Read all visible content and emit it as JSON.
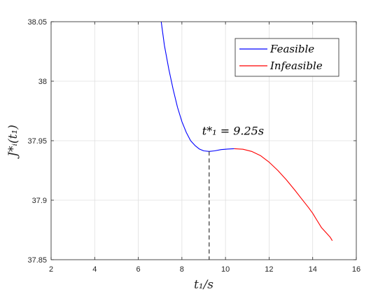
{
  "chart_data": {
    "type": "line",
    "x_tick_labels": [
      "2",
      "4",
      "6",
      "8",
      "10",
      "12",
      "14",
      "16"
    ],
    "y_tick_labels": [
      "37.85",
      "37.9",
      "37.95",
      "38",
      "38.05"
    ],
    "x_ticks": [
      2,
      4,
      6,
      8,
      10,
      12,
      14,
      16
    ],
    "y_ticks": [
      37.85,
      37.9,
      37.95,
      38,
      38.05
    ],
    "xlabel": "t₁/s",
    "ylabel": "J*ᵢ(t₁)",
    "xlim": [
      2,
      16
    ],
    "ylim": [
      37.85,
      38.05
    ],
    "grid": true,
    "legend_position": "top-right",
    "series": [
      {
        "name": "Feasible",
        "color": "#0000ff",
        "x": [
          7.05,
          7.2,
          7.4,
          7.6,
          7.8,
          8.0,
          8.2,
          8.4,
          8.6,
          8.8,
          9.0,
          9.25,
          9.5,
          9.8,
          10.1,
          10.4
        ],
        "y": [
          38.05,
          38.03,
          38.01,
          37.993,
          37.978,
          37.966,
          37.957,
          37.95,
          37.946,
          37.943,
          37.9415,
          37.941,
          37.9415,
          37.9425,
          37.943,
          37.9433
        ]
      },
      {
        "name": "Infeasible",
        "color": "#ff0000",
        "x": [
          10.4,
          10.8,
          11.2,
          11.6,
          12.0,
          12.4,
          12.8,
          13.2,
          13.5,
          13.8,
          14.0,
          14.2,
          14.4,
          14.6,
          14.8,
          14.9
        ],
        "y": [
          37.9433,
          37.9428,
          37.941,
          37.9375,
          37.932,
          37.925,
          37.917,
          37.908,
          37.901,
          37.894,
          37.889,
          37.883,
          37.877,
          37.873,
          37.869,
          37.866
        ]
      }
    ],
    "annotations": [
      {
        "text": "t*₁ = 9.25s",
        "x": 9.25,
        "y": 37.941,
        "dashed_drop_line": true,
        "line_color": "#333333"
      }
    ]
  }
}
